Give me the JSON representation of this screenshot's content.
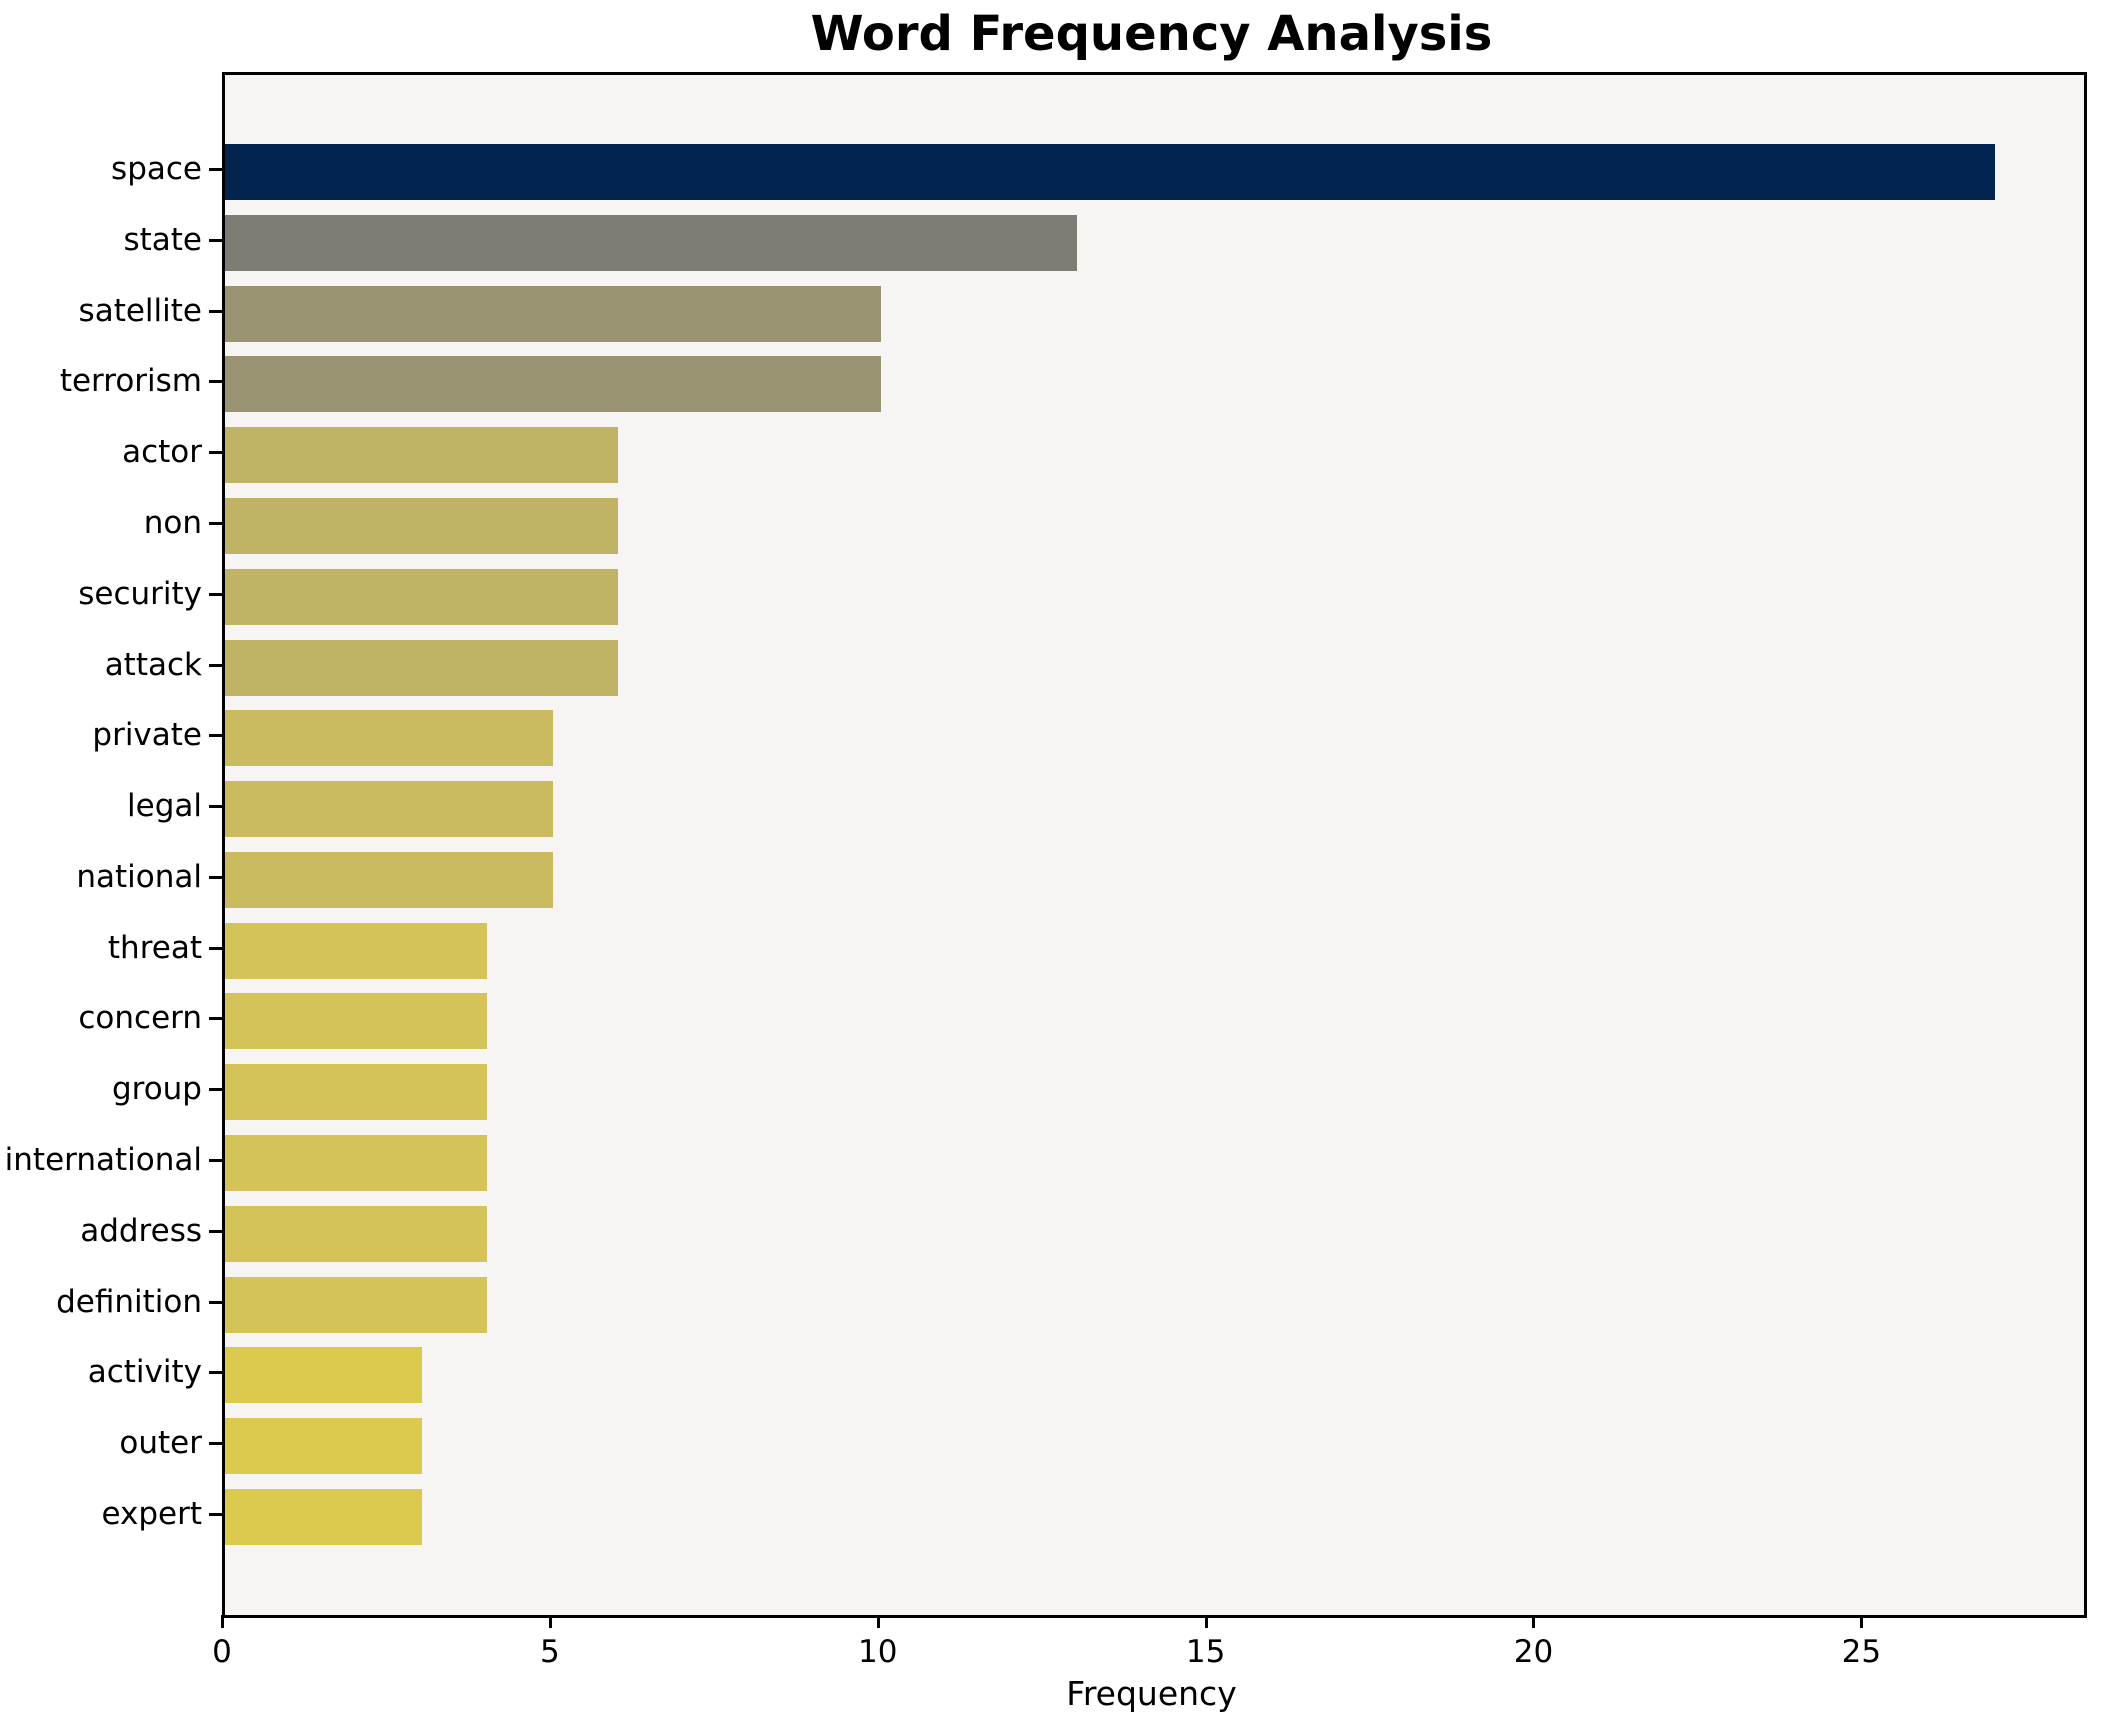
{
  "title": "Word Frequency Analysis",
  "chart_data": {
    "type": "bar",
    "orientation": "horizontal",
    "title": "Word Frequency Analysis",
    "xlabel": "Frequency",
    "ylabel": "",
    "grid": false,
    "legend": null,
    "xlim": [
      0,
      28.35
    ],
    "xticks": [
      0,
      5,
      10,
      15,
      20,
      25
    ],
    "xtick_labels": [
      "0",
      "5",
      "10",
      "15",
      "20",
      "25"
    ],
    "categories": [
      "space",
      "state",
      "satellite",
      "terrorism",
      "actor",
      "non",
      "security",
      "attack",
      "private",
      "legal",
      "national",
      "threat",
      "concern",
      "group",
      "international",
      "address",
      "definition",
      "activity",
      "outer",
      "expert"
    ],
    "values": [
      27,
      13,
      10,
      10,
      6,
      6,
      6,
      6,
      5,
      5,
      5,
      4,
      4,
      4,
      4,
      4,
      4,
      3,
      3,
      3
    ],
    "bar_colors": [
      "#03244f",
      "#7d7c75",
      "#9a9372",
      "#9a9372",
      "#c0b365",
      "#c0b365",
      "#c0b365",
      "#c0b365",
      "#cabb60",
      "#cabb60",
      "#cabb60",
      "#d3c358",
      "#d3c358",
      "#d3c358",
      "#d3c358",
      "#d3c358",
      "#d3c358",
      "#dbca4e",
      "#dbca4e",
      "#dbca4e"
    ]
  },
  "colors": {
    "figure_background": "#ffffff",
    "plot_background": "#f6f5f4",
    "axis": "#000000",
    "text": "#000000"
  }
}
